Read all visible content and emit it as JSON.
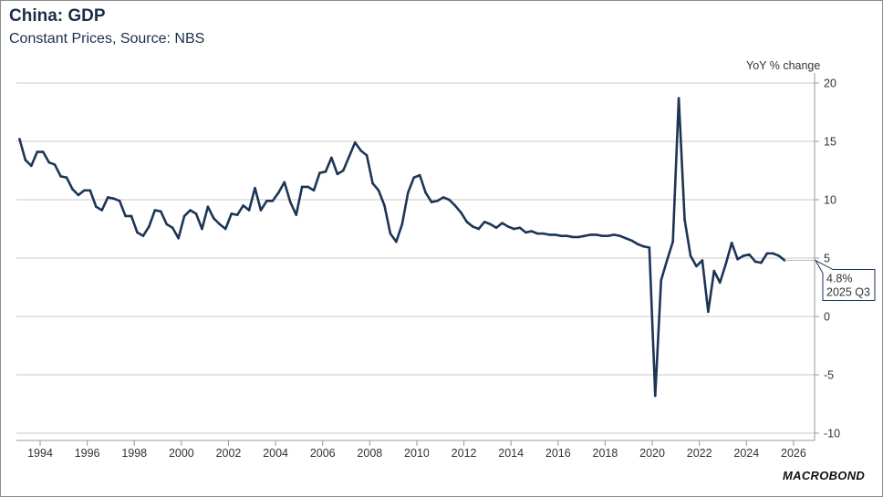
{
  "title": "China: GDP",
  "subtitle": "Constant Prices, Source: NBS",
  "logo": "MACROBOND",
  "chart_data": {
    "type": "line",
    "title": "China: GDP",
    "subtitle": "Constant Prices, Source: NBS",
    "ylabel": "YoY % change",
    "xlabel": "",
    "ylim": [
      -10,
      20
    ],
    "yticks": [
      "20",
      "15",
      "10",
      "5",
      "0",
      "-5",
      "-10"
    ],
    "xlim": [
      1993,
      2026.4
    ],
    "xticks": [
      "1994",
      "1996",
      "1998",
      "2000",
      "2002",
      "2004",
      "2006",
      "2008",
      "2010",
      "2012",
      "2014",
      "2016",
      "2018",
      "2020",
      "2022",
      "2024",
      "2026"
    ],
    "grid": true,
    "line_color": "#1c3557",
    "series": [
      {
        "name": "China GDP, YoY % change (quarterly, from 1993 Q1)",
        "start": "1993 Q1",
        "frequency": "quarterly",
        "values": [
          15.2,
          13.4,
          12.9,
          14.1,
          14.1,
          13.2,
          13.0,
          12.0,
          11.9,
          10.9,
          10.4,
          10.8,
          10.8,
          9.4,
          9.1,
          10.2,
          10.1,
          9.9,
          8.6,
          8.6,
          7.2,
          6.9,
          7.7,
          9.1,
          9.0,
          7.9,
          7.6,
          6.7,
          8.6,
          9.1,
          8.8,
          7.5,
          9.4,
          8.4,
          7.9,
          7.5,
          8.8,
          8.7,
          9.5,
          9.1,
          11.0,
          9.1,
          9.9,
          9.9,
          10.6,
          11.5,
          9.8,
          8.7,
          11.1,
          11.1,
          10.8,
          12.3,
          12.4,
          13.6,
          12.2,
          12.5,
          13.7,
          14.9,
          14.2,
          13.8,
          11.4,
          10.8,
          9.5,
          7.1,
          6.4,
          7.9,
          10.6,
          11.9,
          12.1,
          10.6,
          9.8,
          9.9,
          10.2,
          10.0,
          9.5,
          8.9,
          8.1,
          7.7,
          7.5,
          8.1,
          7.9,
          7.6,
          8.0,
          7.7,
          7.5,
          7.6,
          7.2,
          7.3,
          7.1,
          7.1,
          7.0,
          7.0,
          6.9,
          6.9,
          6.8,
          6.8,
          6.9,
          7.0,
          7.0,
          6.9,
          6.9,
          7.0,
          6.9,
          6.7,
          6.5,
          6.2,
          6.0,
          5.9,
          -6.8,
          3.1,
          4.8,
          6.4,
          18.7,
          8.3,
          5.2,
          4.3,
          4.8,
          0.4,
          3.9,
          2.9,
          4.5,
          6.3,
          4.9,
          5.2,
          5.3,
          4.7,
          4.6,
          5.4,
          5.4,
          5.2,
          4.8
        ]
      }
    ],
    "annotation": {
      "value": "4.8%",
      "period": "2025 Q3"
    }
  }
}
